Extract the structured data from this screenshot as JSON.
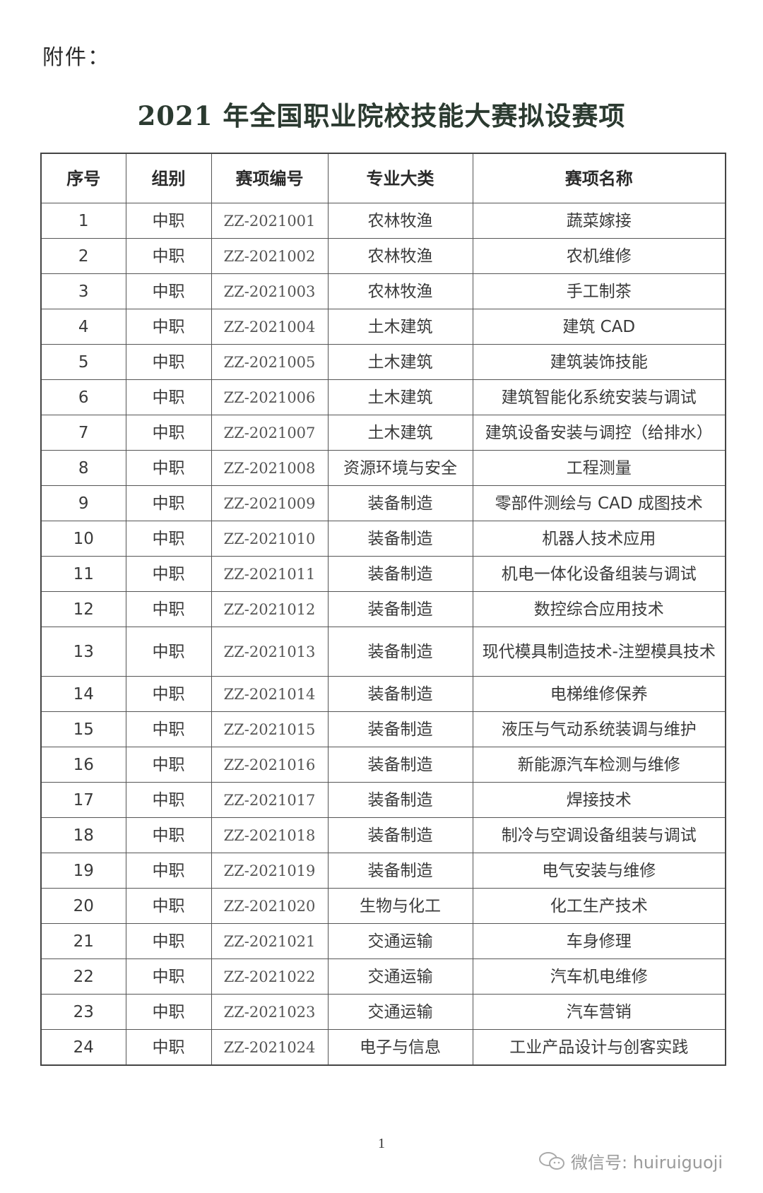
{
  "attachment_label": "附件：",
  "title": "2021 年全国职业院校技能大赛拟设赛项",
  "table": {
    "headers": [
      "序号",
      "组别",
      "赛项编号",
      "专业大类",
      "赛项名称"
    ],
    "rows": [
      [
        "1",
        "中职",
        "ZZ-2021001",
        "农林牧渔",
        "蔬菜嫁接"
      ],
      [
        "2",
        "中职",
        "ZZ-2021002",
        "农林牧渔",
        "农机维修"
      ],
      [
        "3",
        "中职",
        "ZZ-2021003",
        "农林牧渔",
        "手工制茶"
      ],
      [
        "4",
        "中职",
        "ZZ-2021004",
        "土木建筑",
        "建筑 CAD"
      ],
      [
        "5",
        "中职",
        "ZZ-2021005",
        "土木建筑",
        "建筑装饰技能"
      ],
      [
        "6",
        "中职",
        "ZZ-2021006",
        "土木建筑",
        "建筑智能化系统安装与调试"
      ],
      [
        "7",
        "中职",
        "ZZ-2021007",
        "土木建筑",
        "建筑设备安装与调控（给排水）"
      ],
      [
        "8",
        "中职",
        "ZZ-2021008",
        "资源环境与安全",
        "工程测量"
      ],
      [
        "9",
        "中职",
        "ZZ-2021009",
        "装备制造",
        "零部件测绘与 CAD 成图技术"
      ],
      [
        "10",
        "中职",
        "ZZ-2021010",
        "装备制造",
        "机器人技术应用"
      ],
      [
        "11",
        "中职",
        "ZZ-2021011",
        "装备制造",
        "机电一体化设备组装与调试"
      ],
      [
        "12",
        "中职",
        "ZZ-2021012",
        "装备制造",
        "数控综合应用技术"
      ],
      [
        "13",
        "中职",
        "ZZ-2021013",
        "装备制造",
        "现代模具制造技术-注塑模具技术"
      ],
      [
        "14",
        "中职",
        "ZZ-2021014",
        "装备制造",
        "电梯维修保养"
      ],
      [
        "15",
        "中职",
        "ZZ-2021015",
        "装备制造",
        "液压与气动系统装调与维护"
      ],
      [
        "16",
        "中职",
        "ZZ-2021016",
        "装备制造",
        "新能源汽车检测与维修"
      ],
      [
        "17",
        "中职",
        "ZZ-2021017",
        "装备制造",
        "焊接技术"
      ],
      [
        "18",
        "中职",
        "ZZ-2021018",
        "装备制造",
        "制冷与空调设备组装与调试"
      ],
      [
        "19",
        "中职",
        "ZZ-2021019",
        "装备制造",
        "电气安装与维修"
      ],
      [
        "20",
        "中职",
        "ZZ-2021020",
        "生物与化工",
        "化工生产技术"
      ],
      [
        "21",
        "中职",
        "ZZ-2021021",
        "交通运输",
        "车身修理"
      ],
      [
        "22",
        "中职",
        "ZZ-2021022",
        "交通运输",
        "汽车机电维修"
      ],
      [
        "23",
        "中职",
        "ZZ-2021023",
        "交通运输",
        "汽车营销"
      ],
      [
        "24",
        "中职",
        "ZZ-2021024",
        "电子与信息",
        "工业产品设计与创客实践"
      ]
    ]
  },
  "page_number": "1",
  "watermark": {
    "icon": "wechat-icon",
    "text": "微信号: huiruiguoji"
  }
}
